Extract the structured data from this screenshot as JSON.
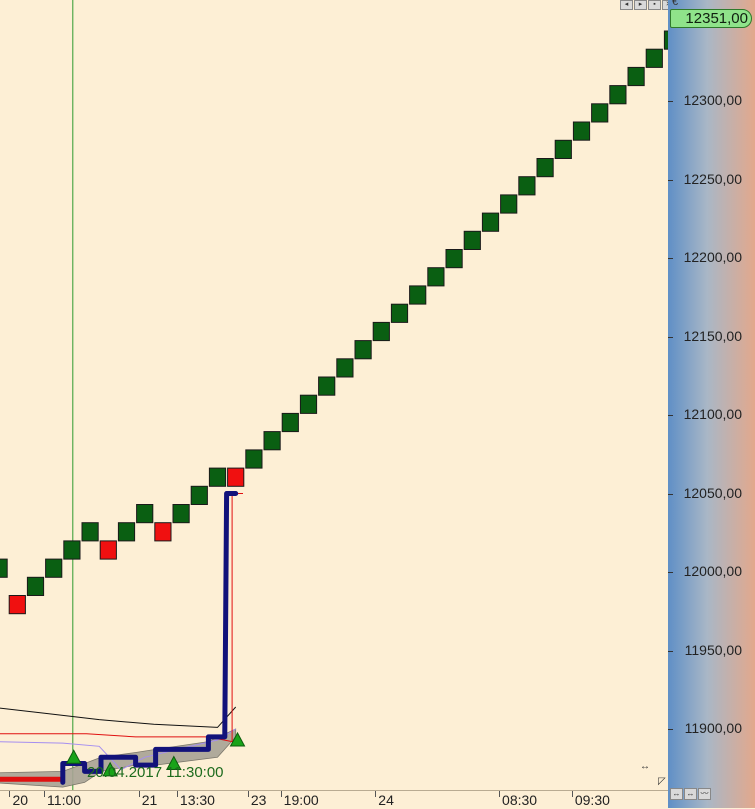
{
  "chart_data": {
    "type": "renko",
    "currency": "€",
    "last_price": "12351,00",
    "last_price_value": 12351,
    "cursor_label": "20.04.2017 11:30:00",
    "ylim": [
      11860,
      12362
    ],
    "y_ticks": [
      {
        "value": 11900,
        "label": "11900,00"
      },
      {
        "value": 11950,
        "label": "11950,00"
      },
      {
        "value": 12000,
        "label": "12000,00"
      },
      {
        "value": 12050,
        "label": "12050,00"
      },
      {
        "value": 12100,
        "label": "12100,00"
      },
      {
        "value": 12150,
        "label": "12150,00"
      },
      {
        "value": 12200,
        "label": "12200,00"
      },
      {
        "value": 12250,
        "label": "12250,00"
      },
      {
        "value": 12300,
        "label": "12300,00"
      }
    ],
    "x_ticks": [
      {
        "brick": 1.4,
        "label": "20"
      },
      {
        "brick": 3.3,
        "label": "11:00"
      },
      {
        "brick": 8.5,
        "label": "21"
      },
      {
        "brick": 10.6,
        "label": "13:30"
      },
      {
        "brick": 14.5,
        "label": "23"
      },
      {
        "brick": 16.3,
        "label": "19:00"
      },
      {
        "brick": 21.5,
        "label": "24"
      },
      {
        "brick": 28.3,
        "label": "08:30"
      },
      {
        "brick": 32.3,
        "label": "09:30"
      }
    ],
    "brick_size": 11.6,
    "bricks": [
      {
        "dir": "up",
        "low": 11996.6,
        "high": 12008.2
      },
      {
        "dir": "down",
        "low": 11973.4,
        "high": 11985.0
      },
      {
        "dir": "up",
        "low": 11985.0,
        "high": 11996.6
      },
      {
        "dir": "up",
        "low": 11996.6,
        "high": 12008.2
      },
      {
        "dir": "up",
        "low": 12008.2,
        "high": 12019.8
      },
      {
        "dir": "up",
        "low": 12019.8,
        "high": 12031.4
      },
      {
        "dir": "down",
        "low": 12008.2,
        "high": 12019.8
      },
      {
        "dir": "up",
        "low": 12019.8,
        "high": 12031.4
      },
      {
        "dir": "up",
        "low": 12031.4,
        "high": 12043.0
      },
      {
        "dir": "down",
        "low": 12019.8,
        "high": 12031.4
      },
      {
        "dir": "up",
        "low": 12031.4,
        "high": 12043.0
      },
      {
        "dir": "up",
        "low": 12043.0,
        "high": 12054.6
      },
      {
        "dir": "up",
        "low": 12054.6,
        "high": 12066.2
      },
      {
        "dir": "down",
        "low": 12054.6,
        "high": 12066.2
      },
      {
        "dir": "up",
        "low": 12066.2,
        "high": 12077.8
      },
      {
        "dir": "up",
        "low": 12077.8,
        "high": 12089.4
      },
      {
        "dir": "up",
        "low": 12089.4,
        "high": 12101.0
      },
      {
        "dir": "up",
        "low": 12101.0,
        "high": 12112.6
      },
      {
        "dir": "up",
        "low": 12112.6,
        "high": 12124.2
      },
      {
        "dir": "up",
        "low": 12124.2,
        "high": 12135.8
      },
      {
        "dir": "up",
        "low": 12135.8,
        "high": 12147.4
      },
      {
        "dir": "up",
        "low": 12147.4,
        "high": 12159.0
      },
      {
        "dir": "up",
        "low": 12159.0,
        "high": 12170.6
      },
      {
        "dir": "up",
        "low": 12170.6,
        "high": 12182.2
      },
      {
        "dir": "up",
        "low": 12182.2,
        "high": 12193.8
      },
      {
        "dir": "up",
        "low": 12193.8,
        "high": 12205.4
      },
      {
        "dir": "up",
        "low": 12205.4,
        "high": 12217.0
      },
      {
        "dir": "up",
        "low": 12217.0,
        "high": 12228.6
      },
      {
        "dir": "up",
        "low": 12228.6,
        "high": 12240.2
      },
      {
        "dir": "up",
        "low": 12240.2,
        "high": 12251.8
      },
      {
        "dir": "up",
        "low": 12251.8,
        "high": 12263.4
      },
      {
        "dir": "up",
        "low": 12263.4,
        "high": 12275.0
      },
      {
        "dir": "up",
        "low": 12275.0,
        "high": 12286.6
      },
      {
        "dir": "up",
        "low": 12286.6,
        "high": 12298.2
      },
      {
        "dir": "up",
        "low": 12298.2,
        "high": 12309.8
      },
      {
        "dir": "up",
        "low": 12309.8,
        "high": 12321.4
      },
      {
        "dir": "up",
        "low": 12321.4,
        "high": 12333.0
      },
      {
        "dir": "up",
        "low": 12333.0,
        "high": 12344.6
      },
      {
        "dir": "up",
        "low": 12344.6,
        "high": 12356.2
      }
    ],
    "signals": [
      {
        "type": "buy",
        "brick": 4.6,
        "y": 11882
      },
      {
        "type": "buy",
        "brick": 6.6,
        "y": 11874
      },
      {
        "type": "buy",
        "brick": 10.1,
        "y": 11878
      },
      {
        "type": "buy",
        "brick": 13.6,
        "y": 11893
      }
    ],
    "stop_line": [
      [
        4.0,
        11866
      ],
      [
        4.0,
        11878
      ],
      [
        5.2,
        11878
      ],
      [
        5.2,
        11873
      ],
      [
        6.1,
        11873
      ],
      [
        6.1,
        11882
      ],
      [
        8.0,
        11882
      ],
      [
        8.0,
        11877
      ],
      [
        9.1,
        11877
      ],
      [
        9.1,
        11887
      ],
      [
        12.0,
        11887
      ],
      [
        12.0,
        11895
      ],
      [
        12.9,
        11895
      ],
      [
        12.9,
        11898
      ],
      [
        13.0,
        12050
      ],
      [
        13.5,
        12050
      ]
    ],
    "band_upper": [
      [
        0,
        11872
      ],
      [
        4.0,
        11873
      ],
      [
        5.2,
        11878
      ],
      [
        6.1,
        11882
      ],
      [
        8.0,
        11885
      ],
      [
        9.1,
        11887
      ],
      [
        12.0,
        11892
      ],
      [
        13.5,
        11900
      ]
    ],
    "band_lower": [
      [
        0,
        11866
      ],
      [
        4.0,
        11863
      ],
      [
        5.2,
        11866
      ],
      [
        6.1,
        11873
      ],
      [
        8.0,
        11877
      ],
      [
        9.1,
        11877
      ],
      [
        12.5,
        11882
      ],
      [
        13.5,
        11895
      ]
    ],
    "red_level": [
      [
        0,
        11868
      ],
      [
        4.0,
        11868
      ]
    ],
    "black_line": [
      [
        0,
        11914
      ],
      [
        3.0,
        11910
      ],
      [
        6.0,
        11906
      ],
      [
        9.0,
        11903
      ],
      [
        12.5,
        11901
      ],
      [
        13.5,
        11914
      ]
    ],
    "red_thin_line": [
      [
        0,
        11897
      ],
      [
        4.0,
        11897
      ],
      [
        5.3,
        11897
      ],
      [
        8.0,
        11895
      ],
      [
        12.0,
        11895
      ],
      [
        13.3,
        11892
      ],
      [
        13.3,
        12050
      ],
      [
        13.9,
        12050
      ]
    ],
    "purple_line": [
      [
        0,
        11892
      ],
      [
        4.0,
        11891
      ],
      [
        6.0,
        11889
      ],
      [
        7.2,
        11874
      ],
      [
        8.5,
        11882
      ],
      [
        11.0,
        11889
      ],
      [
        12.5,
        11893
      ],
      [
        13.5,
        11900
      ]
    ],
    "cursor_brick": 4.55,
    "colors": {
      "up": "#0a5f12",
      "down": "#f01010",
      "stop": "#12127a",
      "band": "#a8a395",
      "signal": "#19a319",
      "cursor": "#2f9a2f",
      "black": "#111111",
      "red": "#e01010",
      "purple": "#a58ef0"
    }
  },
  "window_controls": [
    "◂",
    "▸",
    "▪",
    "✕"
  ],
  "scroll_controls": [
    "↔",
    "↔",
    "〰"
  ],
  "handle_glyph": "↔",
  "corner_glyph": "◸"
}
